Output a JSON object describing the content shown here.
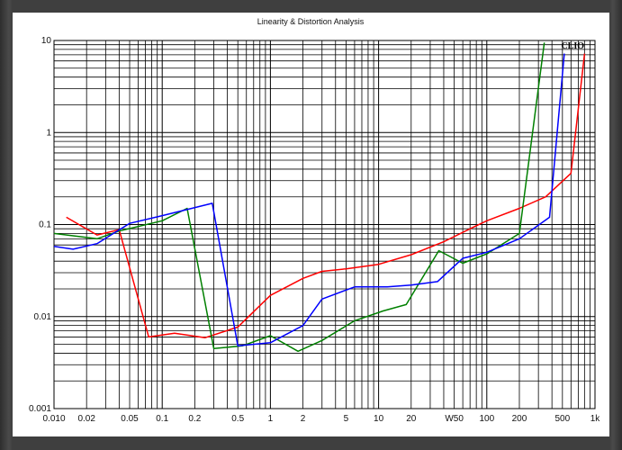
{
  "chart_data": {
    "type": "line",
    "title": "Linearity & Distortion Analysis",
    "brand": "CLIO",
    "xscale": "log",
    "yscale": "log",
    "xlim": [
      0.01,
      1000
    ],
    "ylim": [
      0.001,
      10
    ],
    "grid": true,
    "x_tick_labels": [
      {
        "value": 0.01,
        "label": "0.010"
      },
      {
        "value": 0.02,
        "label": "0.02"
      },
      {
        "value": 0.05,
        "label": "0.05"
      },
      {
        "value": 0.1,
        "label": "0.1"
      },
      {
        "value": 0.2,
        "label": "0.2"
      },
      {
        "value": 0.5,
        "label": "0.5"
      },
      {
        "value": 1,
        "label": "1"
      },
      {
        "value": 2,
        "label": "2"
      },
      {
        "value": 5,
        "label": "5"
      },
      {
        "value": 10,
        "label": "10"
      },
      {
        "value": 20,
        "label": "20"
      },
      {
        "value": 50,
        "label": "W50"
      },
      {
        "value": 100,
        "label": "100"
      },
      {
        "value": 200,
        "label": "200"
      },
      {
        "value": 500,
        "label": "500"
      },
      {
        "value": 1000,
        "label": "1k"
      }
    ],
    "y_tick_labels": [
      {
        "value": 10,
        "label": "10"
      },
      {
        "value": 1,
        "label": "1"
      },
      {
        "value": 0.1,
        "label": "0.1"
      },
      {
        "value": 0.01,
        "label": "0.01"
      },
      {
        "value": 0.001,
        "label": "0.001"
      }
    ],
    "series": [
      {
        "color": "#ff0000",
        "points": [
          [
            0.013,
            0.12
          ],
          [
            0.025,
            0.077
          ],
          [
            0.04,
            0.088
          ],
          [
            0.075,
            0.006
          ],
          [
            0.13,
            0.0066
          ],
          [
            0.25,
            0.0059
          ],
          [
            0.5,
            0.0077
          ],
          [
            1,
            0.017
          ],
          [
            2,
            0.026
          ],
          [
            3,
            0.031
          ],
          [
            5,
            0.033
          ],
          [
            10,
            0.037
          ],
          [
            20,
            0.047
          ],
          [
            40,
            0.065
          ],
          [
            70,
            0.09
          ],
          [
            100,
            0.11
          ],
          [
            200,
            0.15
          ],
          [
            350,
            0.2
          ],
          [
            600,
            0.36
          ],
          [
            800,
            7.2
          ]
        ]
      },
      {
        "color": "#008000",
        "points": [
          [
            0.01,
            0.08
          ],
          [
            0.025,
            0.07
          ],
          [
            0.04,
            0.085
          ],
          [
            0.1,
            0.11
          ],
          [
            0.17,
            0.15
          ],
          [
            0.3,
            0.0045
          ],
          [
            0.55,
            0.0048
          ],
          [
            1,
            0.0062
          ],
          [
            1.8,
            0.0042
          ],
          [
            3,
            0.0055
          ],
          [
            6,
            0.009
          ],
          [
            11,
            0.0115
          ],
          [
            18,
            0.0135
          ],
          [
            36,
            0.052
          ],
          [
            60,
            0.038
          ],
          [
            100,
            0.048
          ],
          [
            200,
            0.08
          ],
          [
            340,
            9.5
          ]
        ]
      },
      {
        "color": "#0000ff",
        "points": [
          [
            0.01,
            0.058
          ],
          [
            0.015,
            0.054
          ],
          [
            0.025,
            0.062
          ],
          [
            0.05,
            0.103
          ],
          [
            0.1,
            0.125
          ],
          [
            0.29,
            0.17
          ],
          [
            0.5,
            0.0048
          ],
          [
            1,
            0.0052
          ],
          [
            2,
            0.008
          ],
          [
            3,
            0.0155
          ],
          [
            6,
            0.021
          ],
          [
            12,
            0.021
          ],
          [
            20,
            0.022
          ],
          [
            35,
            0.024
          ],
          [
            60,
            0.043
          ],
          [
            100,
            0.05
          ],
          [
            200,
            0.07
          ],
          [
            380,
            0.12
          ],
          [
            520,
            7.2
          ]
        ]
      }
    ]
  }
}
